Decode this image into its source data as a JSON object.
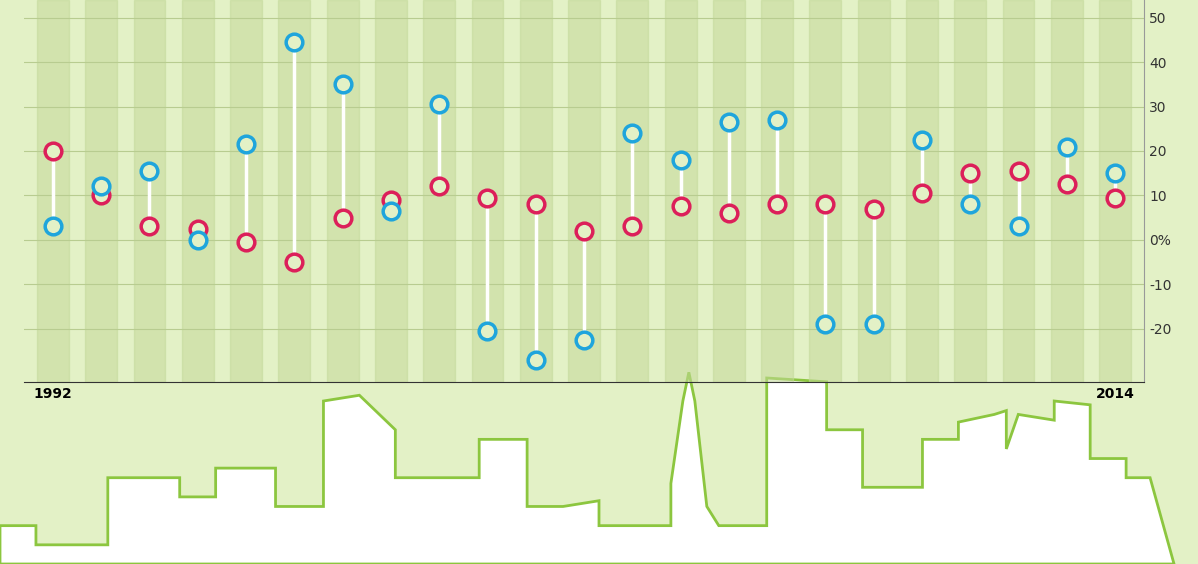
{
  "chart_data": {
    "type": "dumbbell",
    "categories": [
      "1992",
      null,
      null,
      null,
      null,
      null,
      null,
      null,
      null,
      null,
      null,
      null,
      null,
      null,
      null,
      null,
      null,
      null,
      null,
      null,
      null,
      null,
      "2014"
    ],
    "series": [
      {
        "color": "#dc1f5a",
        "marker": "o",
        "values": [
          20,
          10,
          3,
          2.5,
          -0.5,
          -5,
          5,
          9,
          12,
          9.5,
          8,
          2,
          3,
          7.5,
          6,
          8,
          8,
          7,
          10.5,
          15,
          15.5,
          12.5,
          9.5
        ]
      },
      {
        "color": "#1fa5dc",
        "marker": "o",
        "values": [
          3,
          12,
          15.5,
          0,
          21.5,
          44.5,
          35,
          6.5,
          30.5,
          -20.5,
          -27,
          -22.5,
          24,
          18,
          26.5,
          27,
          -19,
          -19,
          22.5,
          8,
          3,
          21,
          15
        ]
      }
    ],
    "ylim": [
      -32,
      54
    ],
    "yticks": [
      -20,
      -10,
      {
        "value": 0,
        "label": "0%"
      },
      10,
      20,
      30,
      40,
      50
    ],
    "grid": true
  }
}
